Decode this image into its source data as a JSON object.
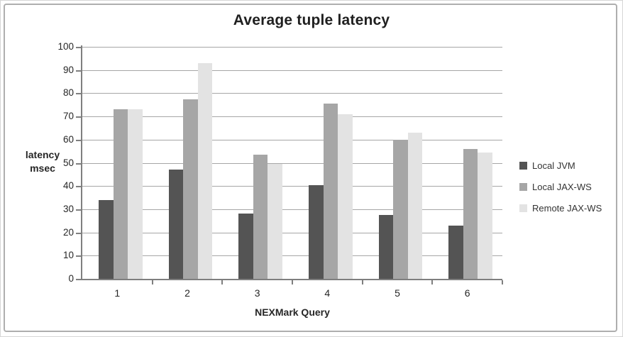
{
  "figure": {
    "title": "Average tuple latency",
    "y_axis_title_line1": "latency",
    "y_axis_title_line2": "msec",
    "x_axis_title": "NEXMark Query"
  },
  "chart_data": {
    "type": "bar",
    "title": "Average tuple latency",
    "categories": [
      "1",
      "2",
      "3",
      "4",
      "5",
      "6"
    ],
    "series": [
      {
        "name": "Local JVM",
        "color": "#545454",
        "values": [
          34,
          47,
          28,
          40.5,
          27.5,
          23
        ]
      },
      {
        "name": "Local JAX-WS",
        "color": "#a6a6a6",
        "values": [
          73,
          77.5,
          53.5,
          75.5,
          60,
          56
        ]
      },
      {
        "name": "Remote JAX-WS",
        "color": "#e3e3e3",
        "values": [
          73,
          93,
          49.5,
          71,
          63,
          54.5
        ]
      }
    ],
    "xlabel": "NEXMark Query",
    "ylabel": "latency msec",
    "ylim": [
      0,
      100
    ],
    "ytick_step": 10,
    "ytick_labels": [
      "0",
      "10",
      "20",
      "30",
      "40",
      "50",
      "60",
      "70",
      "80",
      "90",
      "100"
    ],
    "grid": true,
    "legend_position": "right",
    "legend_entries": [
      "Local JVM",
      "Local JAX-WS",
      "Remote JAX-WS"
    ]
  },
  "style": {
    "background": "#ffffff",
    "frame_border": "#aeaeae",
    "outer_border": "#d6d6d6",
    "gridline_color": "#a6a6a6",
    "axis_color": "#7f7f7f",
    "text_color": "#262626"
  }
}
